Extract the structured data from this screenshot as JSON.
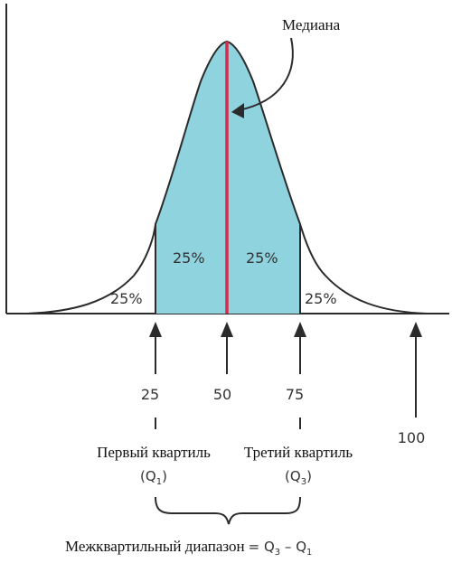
{
  "labels": {
    "median": "Медиана",
    "tails": {
      "left": "25%",
      "right": "25%"
    },
    "inner": {
      "left": "25%",
      "right": "25%"
    },
    "ticks": {
      "q1": "25",
      "median": "50",
      "q3": "75",
      "max": "100"
    },
    "first_quartile": {
      "name": "Первый квартиль",
      "symbol": "(Q",
      "sub": "1",
      "close": ")"
    },
    "third_quartile": {
      "name": "Третий квартиль",
      "symbol": "(Q",
      "sub": "3",
      "close": ")"
    },
    "iqr": {
      "text": "Межквартильный диапазон",
      "eq": "= Q",
      "sub3": "3",
      "minus": " – Q",
      "sub1": "1"
    }
  },
  "colors": {
    "fill": "#8fd3df",
    "median_line": "#d62a4a",
    "outline": "#2b2b2b",
    "text": "#333333"
  }
}
